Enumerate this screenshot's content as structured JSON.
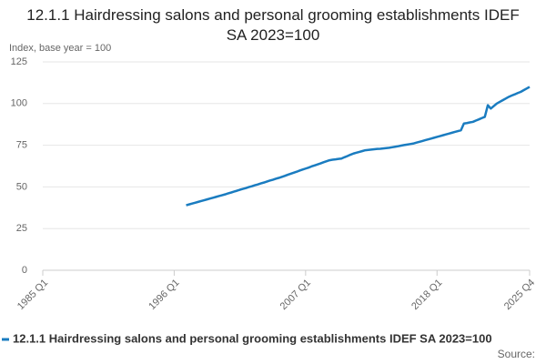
{
  "chart_data": {
    "type": "line",
    "title": "12.1.1 Hairdressing salons and personal grooming establishments IDEF SA 2023=100",
    "y_label": "Index, base year = 100",
    "source": "Source:",
    "categories": [
      "1985 Q1",
      null,
      null,
      null,
      null,
      null,
      null,
      null,
      null,
      null,
      null,
      null,
      null,
      null,
      null,
      null,
      null,
      null,
      null,
      null,
      null,
      null,
      null,
      null,
      null,
      null,
      null,
      null,
      null,
      null,
      null,
      null,
      null,
      null,
      null,
      null,
      null,
      null,
      null,
      null,
      null,
      null,
      null,
      null,
      "1996 Q1",
      null,
      null,
      null,
      null,
      null,
      null,
      null,
      null,
      null,
      null,
      null,
      null,
      null,
      null,
      null,
      null,
      null,
      null,
      null,
      null,
      null,
      null,
      null,
      null,
      null,
      null,
      null,
      null,
      null,
      null,
      null,
      null,
      null,
      null,
      null,
      null,
      null,
      null,
      null,
      null,
      null,
      null,
      null,
      "2007 Q1",
      null,
      null,
      null,
      null,
      null,
      null,
      null,
      null,
      null,
      null,
      null,
      null,
      null,
      null,
      null,
      null,
      null,
      null,
      null,
      null,
      null,
      null,
      null,
      null,
      null,
      null,
      null,
      null,
      null,
      null,
      null,
      null,
      null,
      null,
      null,
      null,
      null,
      null,
      null,
      null,
      null,
      null,
      null,
      "2018 Q1",
      null,
      null,
      null,
      null,
      null,
      null,
      null,
      null,
      null,
      null,
      null,
      null,
      null,
      null,
      null,
      null,
      null,
      null,
      null,
      null,
      null,
      null,
      null,
      null,
      null,
      null,
      null,
      null,
      null,
      null,
      "2025 Q4"
    ],
    "series": [
      {
        "name": "12.1.1 Hairdressing salons and personal grooming establishments IDEF SA 2023=100",
        "color": "#1a7cc0",
        "values": [
          null,
          null,
          null,
          null,
          null,
          null,
          null,
          null,
          null,
          null,
          null,
          null,
          null,
          null,
          null,
          null,
          null,
          null,
          null,
          null,
          null,
          null,
          null,
          null,
          null,
          null,
          null,
          null,
          null,
          null,
          null,
          null,
          null,
          null,
          null,
          null,
          null,
          null,
          null,
          null,
          null,
          null,
          null,
          null,
          null,
          null,
          null,
          null,
          39,
          39.5,
          40,
          40.5,
          41,
          41.5,
          42,
          42.5,
          43,
          43.5,
          44,
          44.5,
          45,
          45.5,
          46.1,
          46.6,
          47.2,
          47.7,
          48.3,
          48.8,
          49.3,
          49.9,
          50.4,
          51.0,
          51.5,
          52.1,
          52.6,
          53.2,
          53.8,
          54.3,
          54.9,
          55.4,
          56,
          56.6,
          57.3,
          57.9,
          58.5,
          59.1,
          59.8,
          60.4,
          61,
          61.6,
          62.3,
          62.9,
          63.5,
          64.1,
          64.8,
          65.4,
          66,
          66.3,
          66.5,
          66.8,
          67,
          67.8,
          68.5,
          69.3,
          70,
          70.5,
          71,
          71.5,
          72,
          72.2,
          72.4,
          72.6,
          72.8,
          72.9,
          73.1,
          73.3,
          73.5,
          73.8,
          74.1,
          74.4,
          74.8,
          75.1,
          75.4,
          75.7,
          76,
          76.5,
          77,
          77.5,
          78,
          78.5,
          79,
          79.5,
          80,
          80.5,
          81,
          81.5,
          82,
          82.5,
          83,
          83.5,
          84,
          88,
          88.3,
          88.7,
          89,
          89.8,
          90.5,
          91.3,
          92,
          99,
          97,
          98.5,
          100,
          101,
          102,
          103,
          104,
          104.8,
          105.5,
          106.3,
          107,
          108,
          109,
          110
        ]
      }
    ],
    "ylim": [
      0,
      125
    ],
    "yticks": [
      0,
      25,
      50,
      75,
      100,
      125
    ],
    "grid": true
  }
}
